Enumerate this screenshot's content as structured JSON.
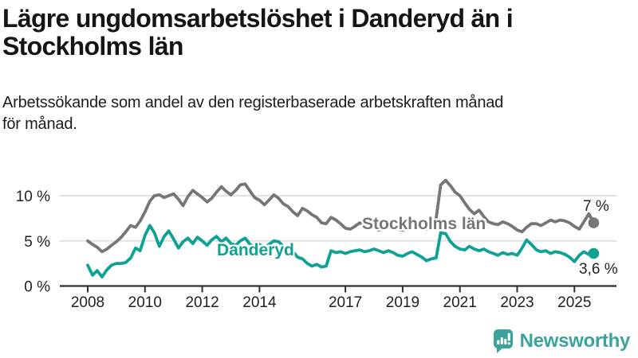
{
  "header": {
    "title_lines": [
      "Lägre ungdomsarbetslöshet i Danderyd än i",
      "Stockholms län"
    ],
    "subtitle_lines": [
      "Arbetssökande som andel av den registerbaserade arbetskraften månad",
      "för månad."
    ]
  },
  "footer": {
    "brand": "Newsworthy"
  },
  "colors": {
    "stockholm_gray": "#76767a",
    "danderyd_teal": "#0ea296",
    "brand_teal": "#3ba29d",
    "grid": "#d9d9d9",
    "axis": "#2e2e2e",
    "tick_text": "#222222"
  },
  "chart_data": {
    "type": "line",
    "title": "Lägre ungdomsarbetslöshet i Danderyd än i Stockholms län",
    "subtitle": "Arbetssökande som andel av den registerbaserade arbetskraften månad för månad.",
    "xlabel": "",
    "ylabel": "",
    "xlim": [
      2007.2,
      2026.5
    ],
    "ylim": [
      0,
      12.5
    ],
    "grid": "horizontal",
    "legend_position": "inline-labels",
    "yticks": [
      {
        "v": 0,
        "label": "0 %"
      },
      {
        "v": 5,
        "label": "5 %"
      },
      {
        "v": 10,
        "label": "10 %"
      }
    ],
    "xticks": [
      {
        "v": 2008,
        "label": "2008"
      },
      {
        "v": 2010,
        "label": "2010"
      },
      {
        "v": 2012,
        "label": "2012"
      },
      {
        "v": 2014,
        "label": "2014"
      },
      {
        "v": 2017,
        "label": "2017"
      },
      {
        "v": 2019,
        "label": "2019"
      },
      {
        "v": 2021,
        "label": "2021"
      },
      {
        "v": 2023,
        "label": "2023"
      },
      {
        "v": 2025,
        "label": "2025"
      }
    ],
    "x": [
      2008,
      2008.17,
      2008.33,
      2008.5,
      2008.67,
      2008.83,
      2009,
      2009.17,
      2009.33,
      2009.5,
      2009.67,
      2009.83,
      2010,
      2010.17,
      2010.33,
      2010.5,
      2010.67,
      2010.83,
      2011,
      2011.17,
      2011.33,
      2011.5,
      2011.67,
      2011.83,
      2012,
      2012.17,
      2012.33,
      2012.5,
      2012.67,
      2012.83,
      2013,
      2013.17,
      2013.33,
      2013.5,
      2013.67,
      2013.83,
      2014,
      2014.17,
      2014.33,
      2014.5,
      2014.67,
      2014.83,
      2015,
      2015.17,
      2015.33,
      2015.5,
      2015.67,
      2015.83,
      2016,
      2016.17,
      2016.33,
      2016.5,
      2016.67,
      2016.83,
      2017,
      2017.17,
      2017.33,
      2017.5,
      2017.67,
      2017.83,
      2018,
      2018.17,
      2018.33,
      2018.5,
      2018.67,
      2018.83,
      2019,
      2019.17,
      2019.33,
      2019.5,
      2019.67,
      2019.83,
      2020,
      2020.17,
      2020.33,
      2020.5,
      2020.67,
      2020.83,
      2021,
      2021.17,
      2021.33,
      2021.5,
      2021.67,
      2021.83,
      2022,
      2022.17,
      2022.33,
      2022.5,
      2022.67,
      2022.83,
      2023,
      2023.17,
      2023.33,
      2023.5,
      2023.67,
      2023.83,
      2024,
      2024.17,
      2024.33,
      2024.5,
      2024.67,
      2024.83,
      2025,
      2025.17,
      2025.33,
      2025.5,
      2025.67
    ],
    "series": [
      {
        "name": "Stockholms län",
        "color": "#76767a",
        "end_label": "7 %",
        "end_value": 7.0,
        "values": [
          5.0,
          4.6,
          4.3,
          3.8,
          4.1,
          4.5,
          4.9,
          5.4,
          6.0,
          6.7,
          6.5,
          7.2,
          8.2,
          9.4,
          10.0,
          10.1,
          9.8,
          10.0,
          10.2,
          9.6,
          8.9,
          9.9,
          10.6,
          10.2,
          9.8,
          9.3,
          9.7,
          10.4,
          11.0,
          10.5,
          10.1,
          10.6,
          11.2,
          11.3,
          10.5,
          9.8,
          9.5,
          9.0,
          9.5,
          10.1,
          9.7,
          9.1,
          8.8,
          8.2,
          7.8,
          8.6,
          8.3,
          7.9,
          7.6,
          7.0,
          6.9,
          7.6,
          7.3,
          6.9,
          6.4,
          6.3,
          6.6,
          7.0,
          6.8,
          6.5,
          6.4,
          6.2,
          6.5,
          6.8,
          6.6,
          6.3,
          6.2,
          6.4,
          6.6,
          6.8,
          6.5,
          6.3,
          6.4,
          7.5,
          11.2,
          11.7,
          11.1,
          10.4,
          10.0,
          9.2,
          8.5,
          8.0,
          8.4,
          7.7,
          7.1,
          6.9,
          6.8,
          7.1,
          6.9,
          6.6,
          6.2,
          6.0,
          6.5,
          6.9,
          6.9,
          6.7,
          7.0,
          7.3,
          7.1,
          7.3,
          7.2,
          7.0,
          6.6,
          6.3,
          7.1,
          8.0,
          7.0
        ]
      },
      {
        "name": "Danderyd",
        "color": "#0ea296",
        "end_label": "3,6 %",
        "end_value": 3.6,
        "values": [
          2.3,
          1.2,
          1.7,
          1.0,
          1.8,
          2.3,
          2.5,
          2.5,
          2.6,
          3.1,
          4.2,
          3.9,
          5.6,
          6.7,
          5.9,
          4.4,
          5.5,
          6.1,
          5.2,
          4.2,
          4.9,
          5.3,
          4.7,
          5.4,
          5.0,
          4.5,
          5.1,
          5.5,
          4.9,
          5.3,
          4.7,
          4.5,
          5.0,
          5.3,
          4.6,
          4.3,
          4.6,
          4.2,
          4.6,
          5.0,
          4.9,
          4.4,
          4.3,
          3.8,
          3.2,
          3.0,
          2.5,
          2.2,
          2.4,
          2.1,
          2.2,
          3.9,
          3.7,
          3.8,
          3.6,
          3.8,
          3.9,
          4.0,
          3.8,
          3.9,
          4.1,
          3.9,
          3.7,
          3.9,
          3.7,
          3.4,
          3.3,
          3.6,
          3.8,
          3.5,
          3.2,
          2.8,
          3.0,
          3.1,
          5.9,
          5.8,
          4.9,
          4.4,
          4.1,
          4.0,
          4.4,
          4.1,
          3.9,
          4.1,
          3.8,
          3.6,
          3.4,
          3.7,
          3.5,
          3.6,
          3.4,
          4.2,
          5.1,
          4.6,
          4.0,
          3.8,
          3.9,
          3.6,
          3.8,
          3.7,
          3.5,
          3.2,
          2.7,
          3.4,
          3.8,
          3.5,
          3.6
        ]
      }
    ]
  }
}
